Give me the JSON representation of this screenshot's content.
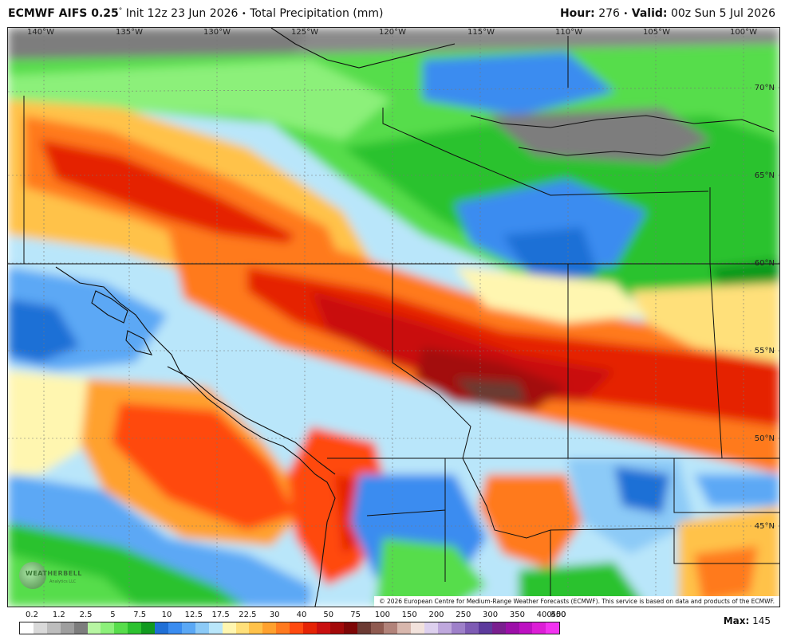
{
  "header": {
    "model": "ECMWF AIFS 0.25",
    "deg": "°",
    "init": "Init 12z 23 Jun 2026",
    "bullet": "•",
    "field": "Total Precipitation (mm)",
    "hour_label": "Hour:",
    "hour_value": "276",
    "valid_label": "Valid:",
    "valid_value": "00z Sun 5 Jul 2026"
  },
  "map": {
    "lon_labels": [
      "140°W",
      "135°W",
      "130°W",
      "125°W",
      "120°W",
      "115°W",
      "110°W",
      "105°W",
      "100°W"
    ],
    "lat_labels": [
      "70°N",
      "65°N",
      "60°N",
      "55°N",
      "50°N",
      "45°N"
    ],
    "logo_text": "WEATHERBELL",
    "logo_sub": "Analytics LLC",
    "copyright": "© 2026 European Centre for Medium-Range Weather Forecasts (ECMWF). This service is based on data and products of the ECMWF."
  },
  "legend": {
    "ticks": [
      "0.2",
      "1.2",
      "2.5",
      "5",
      "7.5",
      "10",
      "12.5",
      "17.5",
      "22.5",
      "30",
      "40",
      "50",
      "75",
      "100",
      "150",
      "200",
      "250",
      "300",
      "350",
      "400",
      "450",
      "500"
    ],
    "colors": [
      "#ffffff",
      "#d9d9d9",
      "#bdbdbd",
      "#9e9e9e",
      "#7d7d7d",
      "#b7f5a2",
      "#8cf07a",
      "#57dd4b",
      "#2cc22f",
      "#119a1f",
      "#1f6fd6",
      "#3a8cf0",
      "#5ba8f5",
      "#8ccaf7",
      "#b9e6fa",
      "#fff6b0",
      "#ffe07a",
      "#ffc24a",
      "#ffa12e",
      "#ff7a1f",
      "#ff4a0f",
      "#e52305",
      "#c90f0f",
      "#a30909",
      "#7e0606",
      "#6b3a33",
      "#8f5a50",
      "#b2837a",
      "#d8b7ad",
      "#f2e2dc",
      "#ddd0ee",
      "#bfa8dd",
      "#9e80c9",
      "#7e5bb4",
      "#5d3a9c",
      "#7a1f8f",
      "#9c0fa8",
      "#bd11c2",
      "#dc1ed6",
      "#f233f0"
    ],
    "max_label": "Max:",
    "max_value": "145"
  }
}
